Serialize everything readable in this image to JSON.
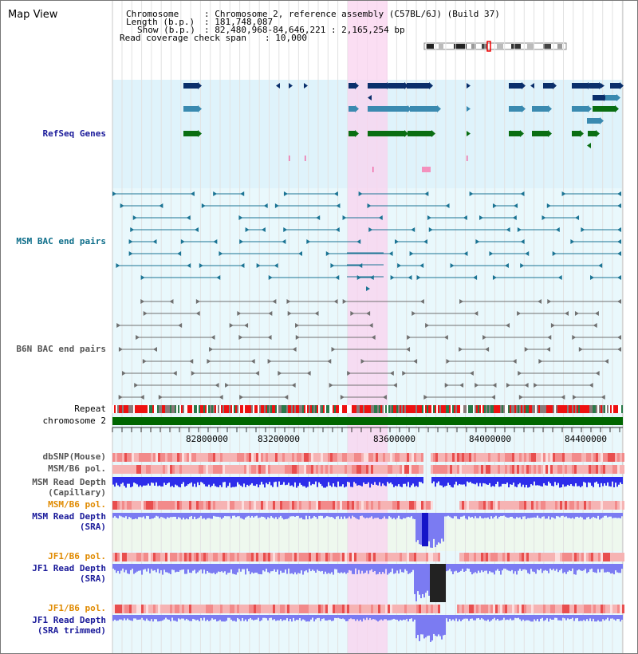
{
  "page": {
    "title": "Map View"
  },
  "info": {
    "chromosome_label": "Chromosome",
    "chromosome_value": ": Chromosome 2, reference assembly (C57BL/6J) (Build 37)",
    "length_label": "Length (b.p.)",
    "length_value": ": 181,748,087",
    "show_label": "Show (b.p.)",
    "show_value": ": 82,480,968-84,646,221 : 2,165,254 bp",
    "coverage_label": "Read coverage check span",
    "coverage_value": ": 10,000"
  },
  "tracks": {
    "refseq": "RefSeq Genes",
    "msm_bac": "MSM BAC end pairs",
    "b6n_bac": "B6N BAC end pairs",
    "repeat": "Repeat",
    "chromosome": "chromosome 2",
    "dbsnp": "dbSNP(Mouse)",
    "msm_b6_pol_1": "MSM/B6 pol.",
    "msm_depth_cap_1": "MSM Read Depth",
    "msm_depth_cap_2": "(Capillary)",
    "msm_b6_pol_2": "MSM/B6 pol.",
    "msm_depth_sra_1": "MSM Read Depth",
    "msm_depth_sra_2": "(SRA)",
    "jf1_b6_pol_1": "JF1/B6 pol.",
    "jf1_depth_sra_1": "JF1 Read Depth",
    "jf1_depth_sra_2": "(SRA)",
    "jf1_b6_pol_2": "JF1/B6 pol.",
    "jf1_depth_trim_1": "JF1 Read Depth",
    "jf1_depth_trim_2": "(SRA trimmed)"
  },
  "axis": {
    "ticks": [
      "82800000",
      "83200000",
      "83600000",
      "84000000",
      "84400000"
    ]
  },
  "colors": {
    "refseq_bg": "#dff3fb",
    "bac_bg": "#e9f8fc",
    "highlight": "#f9d3ef",
    "navy_gene": "#0a2f6b",
    "mid_gene": "#3a8ab0",
    "green_gene": "#0a6e12",
    "bac_teal": "#1b7494",
    "bac_gray": "#707070",
    "chrom_green": "#006600",
    "depth_blue": "#2d2dea",
    "depth_light": "#7b7bf2"
  }
}
